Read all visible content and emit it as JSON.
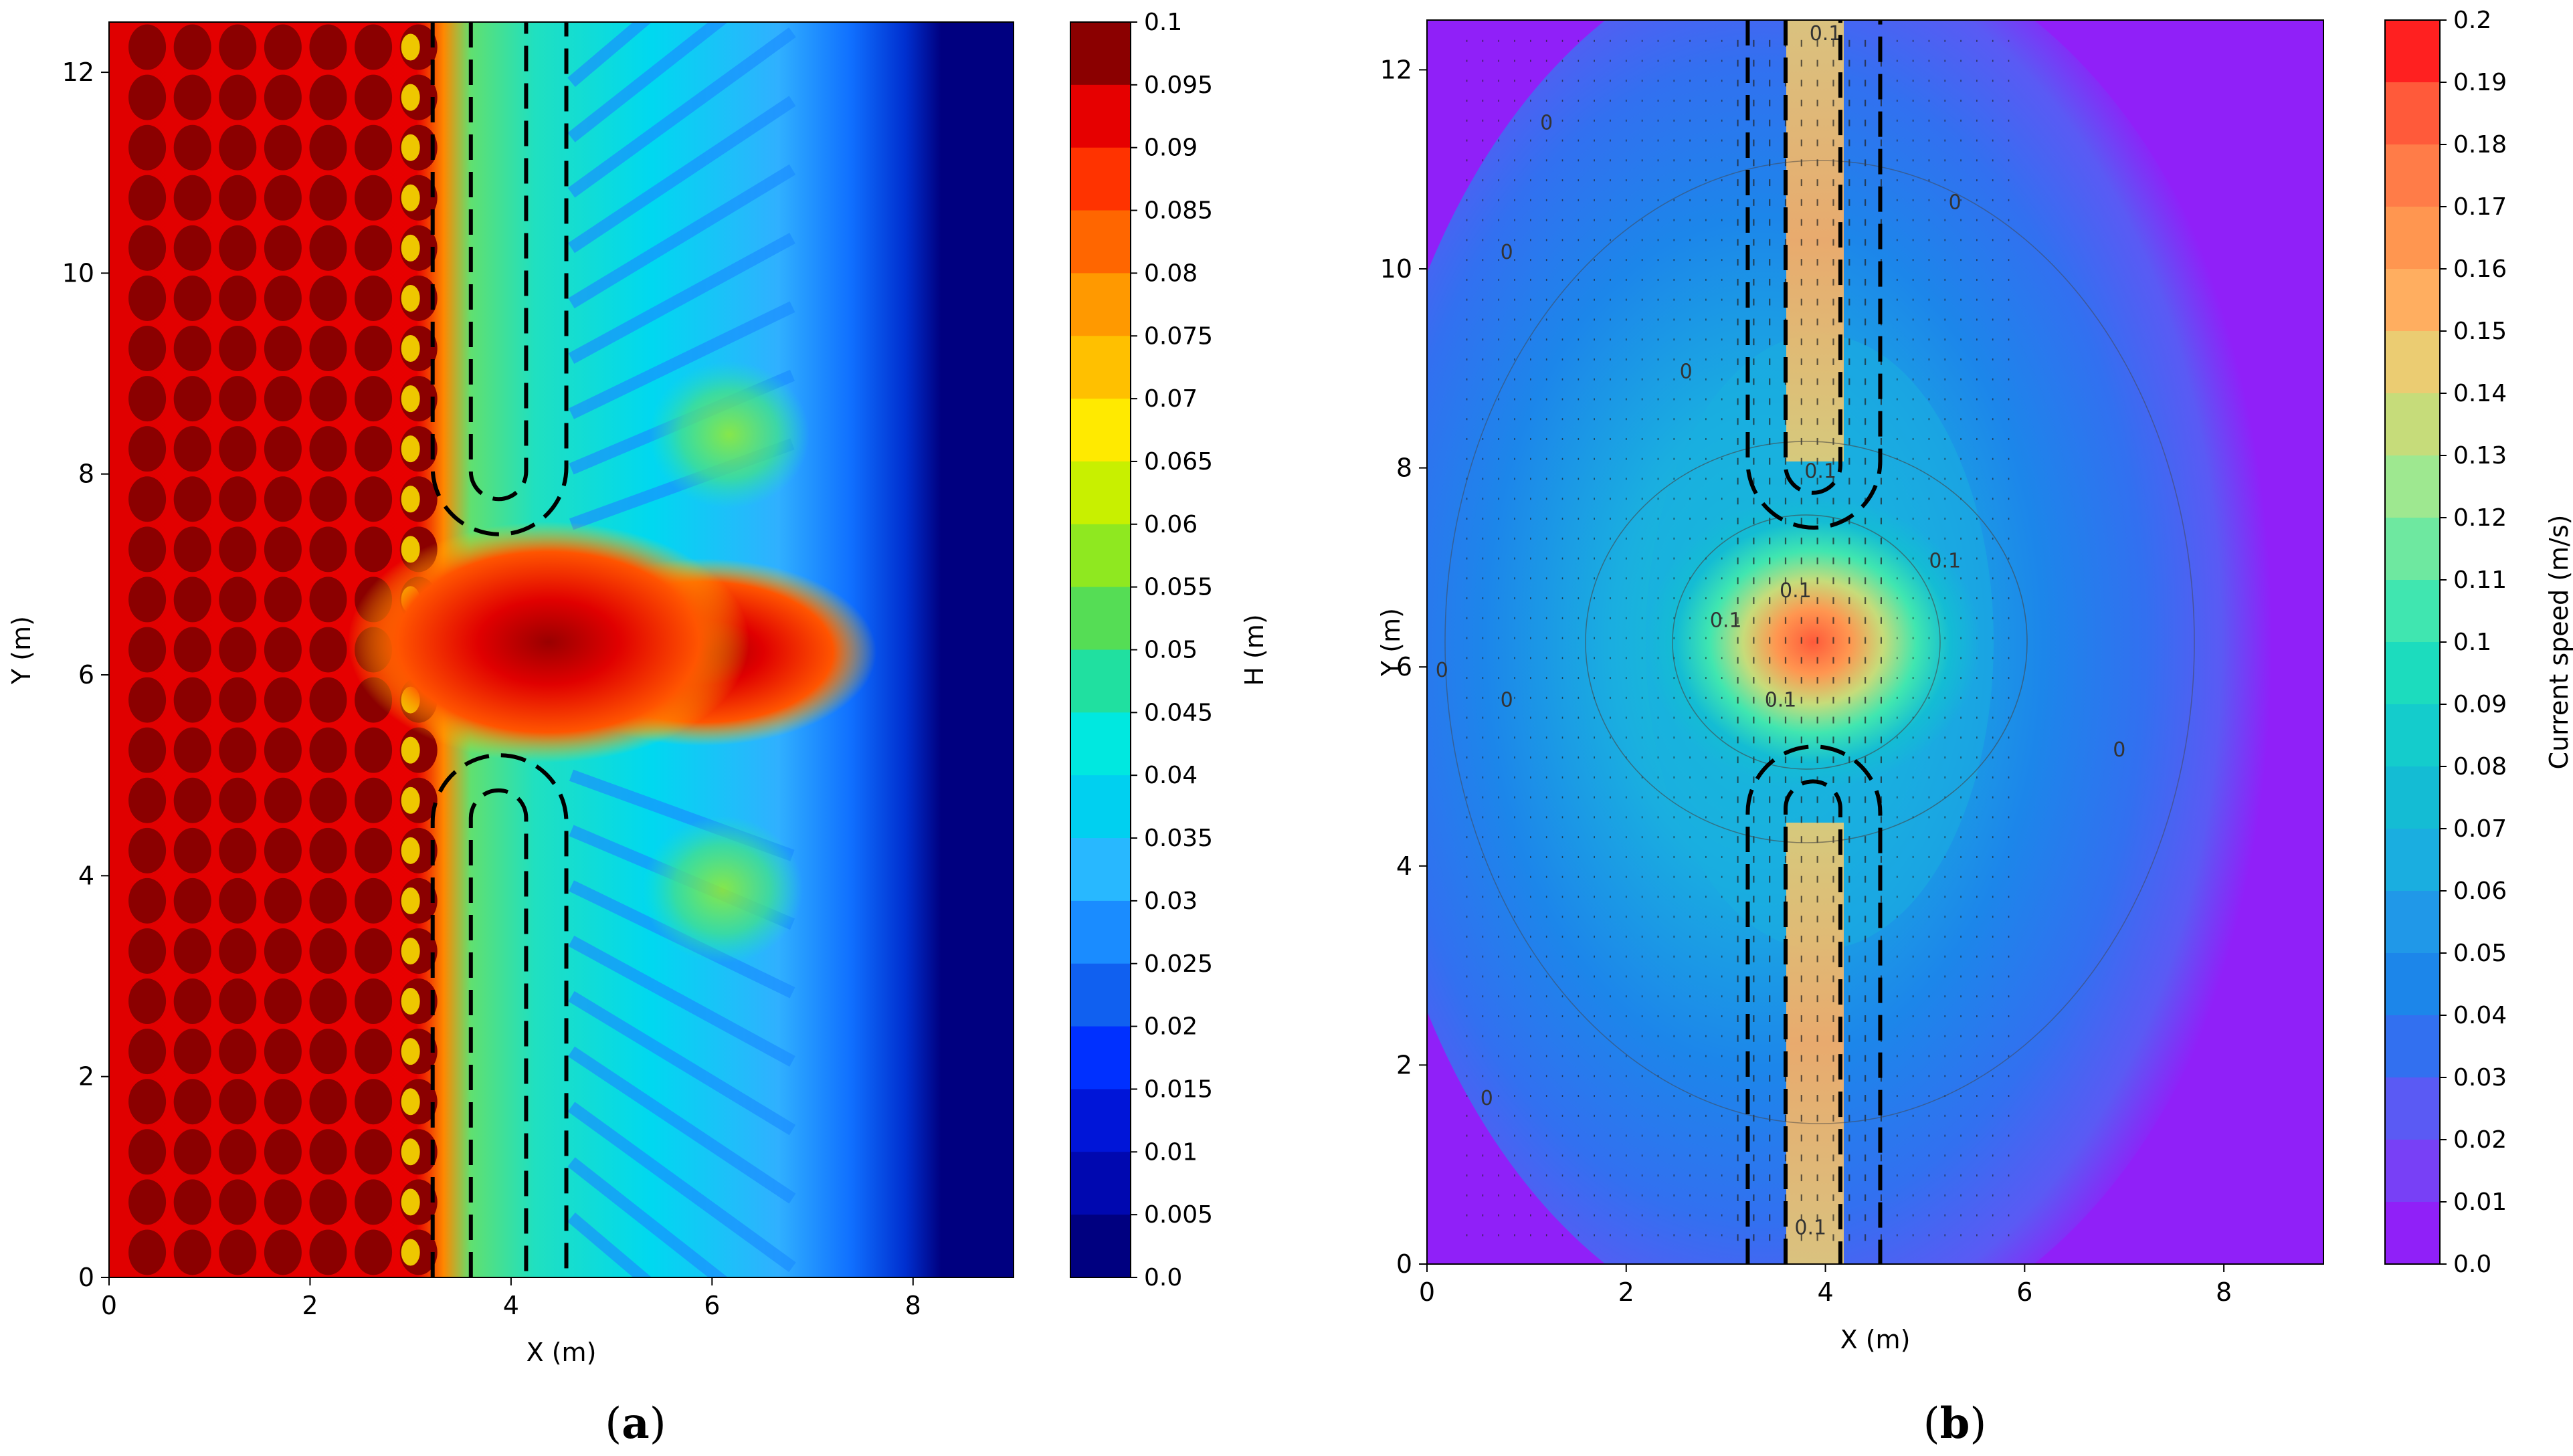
{
  "chart_data": [
    {
      "type": "heatmap",
      "panel_label": "a",
      "caption_open": "(",
      "caption_close": ")",
      "title": "",
      "xlabel": "X (m)",
      "ylabel": "Y (m)",
      "xlim": [
        0,
        9
      ],
      "ylim": [
        0,
        12.5
      ],
      "x_ticks": [
        0,
        2,
        4,
        6,
        8
      ],
      "y_ticks": [
        0,
        2,
        4,
        6,
        8,
        10,
        12
      ],
      "colorbar": {
        "label": "H (m)",
        "ticks": [
          "0.1",
          "0.095",
          "0.09",
          "0.085",
          "0.08",
          "0.075",
          "0.07",
          "0.065",
          "0.06",
          "0.055",
          "0.05",
          "0.045",
          "0.04",
          "0.035",
          "0.03",
          "0.025",
          "0.02",
          "0.015",
          "0.01",
          "0.005",
          "0.0"
        ],
        "colors": [
          "#8b0000",
          "#e60000",
          "#ff3300",
          "#ff6600",
          "#ff9900",
          "#ffc000",
          "#ffea00",
          "#c8f000",
          "#8fe820",
          "#55dd55",
          "#20e0a0",
          "#00e8e0",
          "#00d0f0",
          "#28b8ff",
          "#1a8cff",
          "#1060f0",
          "#0030ff",
          "#0015d8",
          "#0008b0",
          "#000080"
        ]
      },
      "structures": "dashed double breakwaters with rounded heads, gap between Y = 5.2 and Y = 7.4 m"
    },
    {
      "type": "heatmap",
      "panel_label": "b",
      "caption_open": "(",
      "caption_close": ")",
      "title": "",
      "xlabel": "X (m)",
      "ylabel": "Y (m)",
      "xlim": [
        0,
        9
      ],
      "ylim": [
        0,
        12.5
      ],
      "x_ticks": [
        0,
        2,
        4,
        6,
        8
      ],
      "y_ticks": [
        0,
        2,
        4,
        6,
        8,
        10,
        12
      ],
      "contour_labels": [
        "0",
        "0",
        "0",
        "0",
        "0",
        "0",
        "0",
        "0",
        "0.1",
        "0.1",
        "0.1",
        "0.1",
        "0.1",
        "0.1",
        "0.1"
      ],
      "colorbar": {
        "label": "Current speed (m/s)",
        "ticks": [
          "0.2",
          "0.19",
          "0.18",
          "0.17",
          "0.16",
          "0.15",
          "0.14",
          "0.13",
          "0.12",
          "0.11",
          "0.1",
          "0.09",
          "0.08",
          "0.07",
          "0.06",
          "0.05",
          "0.04",
          "0.03",
          "0.02",
          "0.01",
          "0.0"
        ],
        "colors": [
          "#ff2020",
          "#ff5a3a",
          "#ff7c48",
          "#ff9650",
          "#ffae60",
          "#ebcc72",
          "#c6dc7a",
          "#9ee890",
          "#6ee8a0",
          "#40e6b0",
          "#1cdcbe",
          "#14cccc",
          "#14bcd4",
          "#1aaee0",
          "#2098e8",
          "#1c86ea",
          "#3270f0",
          "#5a5af4",
          "#7840f6",
          "#9020f8"
        ]
      },
      "structures": "dashed double breakwaters with rounded heads, gap between Y = 5.2 and Y = 7.4 m"
    }
  ]
}
